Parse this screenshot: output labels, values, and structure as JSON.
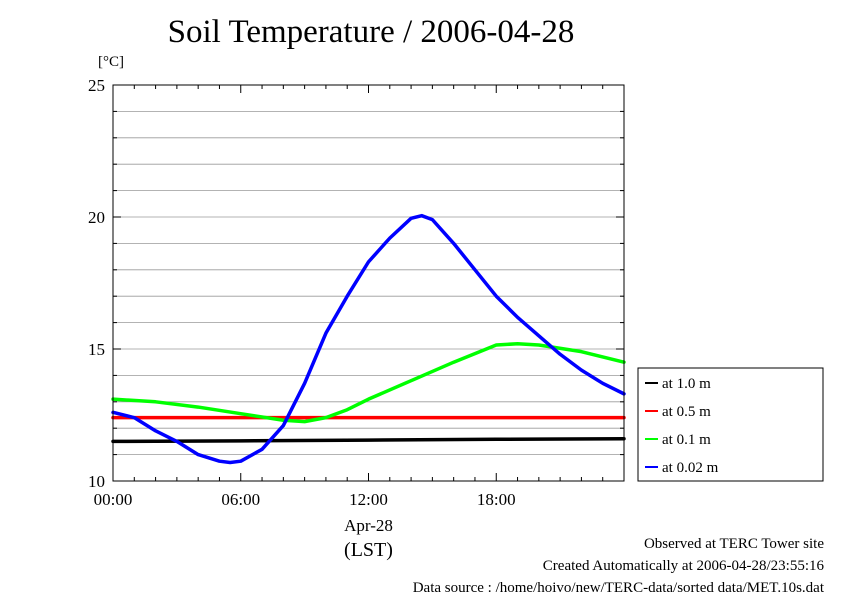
{
  "chart_data": {
    "type": "line",
    "title": "Soil Temperature / 2006-04-28",
    "ylabel": "[°C]",
    "xlabel": "(LST)",
    "date_label": "Apr-28",
    "ylim": [
      10,
      25
    ],
    "xlim": [
      0,
      24
    ],
    "yticks": [
      "10",
      "15",
      "20",
      "25"
    ],
    "xticks": [
      "00:00",
      "06:00",
      "12:00",
      "18:00"
    ],
    "grid": true,
    "legend_position": "right",
    "series": [
      {
        "name": "at 1.0 m",
        "color": "#000000",
        "x": [
          0,
          6,
          12,
          18,
          24
        ],
        "y": [
          11.5,
          11.52,
          11.55,
          11.58,
          11.6
        ]
      },
      {
        "name": "at 0.5 m",
        "color": "#ff0000",
        "x": [
          0,
          6,
          12,
          18,
          24
        ],
        "y": [
          12.4,
          12.4,
          12.4,
          12.4,
          12.4
        ]
      },
      {
        "name": "at 0.1 m",
        "color": "#00ff00",
        "x": [
          0,
          2,
          4,
          6,
          8,
          9,
          10,
          11,
          12,
          14,
          16,
          18,
          19,
          20,
          22,
          24
        ],
        "y": [
          13.1,
          13.0,
          12.8,
          12.55,
          12.3,
          12.25,
          12.4,
          12.7,
          13.1,
          13.8,
          14.5,
          15.15,
          15.2,
          15.15,
          14.9,
          14.5
        ]
      },
      {
        "name": "at 0.02 m",
        "color": "#0000ff",
        "x": [
          0,
          1,
          2,
          3,
          4,
          5,
          5.5,
          6,
          7,
          8,
          9,
          10,
          11,
          12,
          13,
          14,
          14.5,
          15,
          16,
          17,
          18,
          19,
          20,
          21,
          22,
          23,
          24
        ],
        "y": [
          12.6,
          12.4,
          11.9,
          11.5,
          11.0,
          10.75,
          10.7,
          10.75,
          11.2,
          12.1,
          13.7,
          15.6,
          17.0,
          18.3,
          19.2,
          19.95,
          20.05,
          19.9,
          19.0,
          18.0,
          17.0,
          16.2,
          15.5,
          14.8,
          14.2,
          13.7,
          13.3
        ]
      }
    ]
  },
  "footer": {
    "observed": "Observed at TERC Tower site",
    "created": "Created Automatically at 2006-04-28/23:55:16",
    "source": "Data source : /home/hoivo/new/TERC-data/sorted  data/MET.10s.dat"
  }
}
